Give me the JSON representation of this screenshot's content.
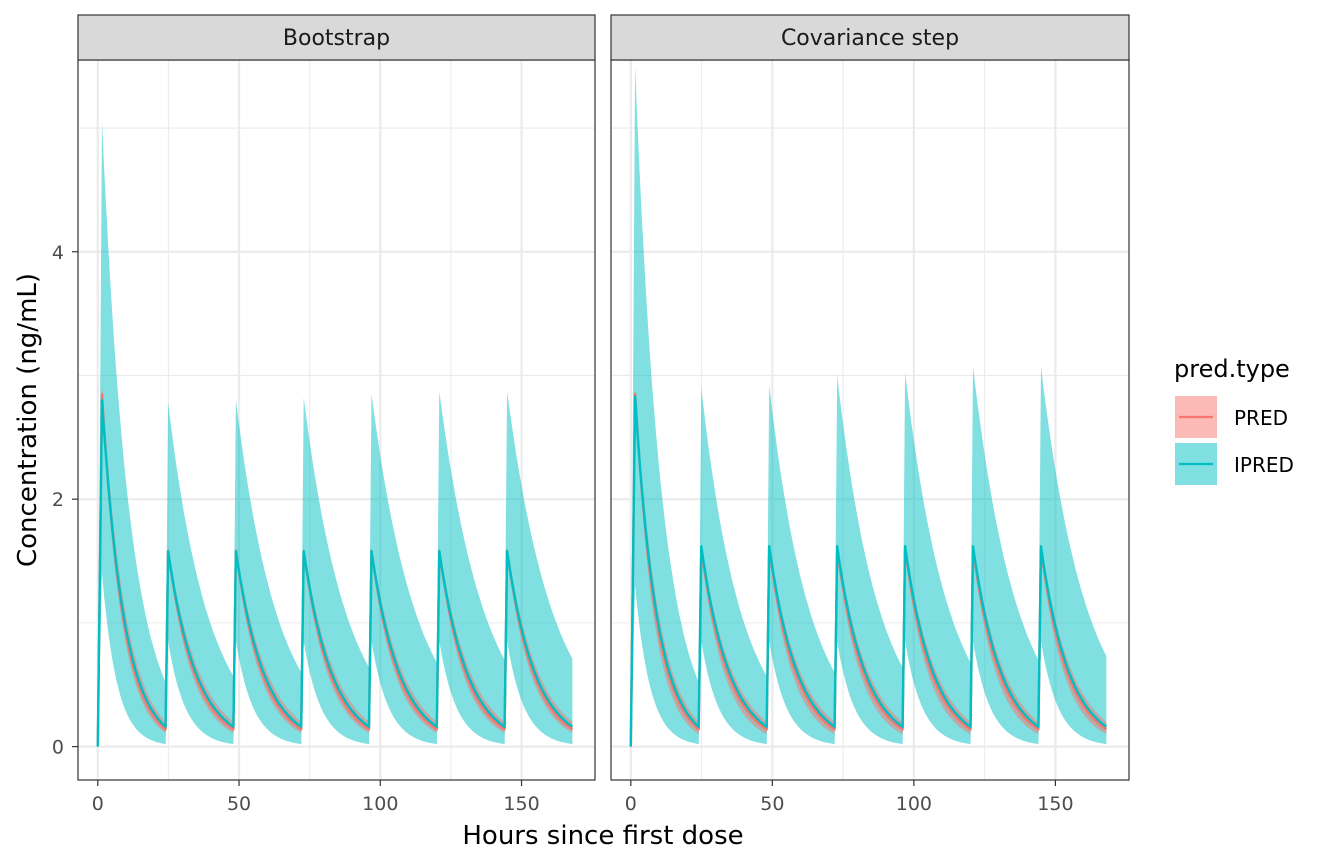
{
  "chart_data": {
    "type": "line",
    "xlabel": "Hours since first dose",
    "ylabel": "Concentration (ng/mL)",
    "xlim": [
      -7,
      176
    ],
    "ylim": [
      -0.27,
      5.55
    ],
    "x_ticks": [
      0,
      50,
      100,
      150
    ],
    "x_tick_labels": [
      "0",
      "50",
      "100",
      "150"
    ],
    "x_minor_ticks": [
      25,
      75,
      125
    ],
    "y_ticks": [
      0,
      2,
      4
    ],
    "y_tick_labels": [
      "0",
      "2",
      "4"
    ],
    "y_minor_ticks": [
      1,
      3,
      5
    ],
    "grid": true,
    "dose_times": [
      0,
      24,
      48,
      72,
      96,
      120,
      144
    ],
    "x_end": 168,
    "legend": {
      "title": "pred.type",
      "position": "right",
      "entries": [
        {
          "label": "PRED",
          "color": "#F8766D"
        },
        {
          "label": "IPRED",
          "color": "#00BFC4"
        }
      ]
    },
    "panels": [
      {
        "strip": "Bootstrap",
        "series": [
          {
            "name": "PRED",
            "color": "#F8766D",
            "median": {
              "first_peak": 2.85,
              "peak": 1.58,
              "trough": 0.14
            },
            "band": {
              "first_peak_hi": 2.92,
              "first_peak_lo": 2.78,
              "peak_hi": 1.62,
              "peak_lo": 1.54,
              "trough_hi": 0.2,
              "trough_lo": 0.11
            }
          },
          {
            "name": "IPRED",
            "color": "#00BFC4",
            "median": {
              "first_peak": 2.8,
              "peak": 1.58,
              "trough": 0.16
            },
            "band": {
              "first_peak_hi": 5.05,
              "first_peak_lo": 1.4,
              "peak_hi": [
                2.75,
                2.78,
                2.8,
                2.82,
                2.85,
                2.87
              ],
              "peak_lo": 0.85,
              "trough_hi": [
                0.52,
                0.57,
                0.6,
                0.64,
                0.68,
                0.7,
                0.71
              ],
              "trough_lo": 0.02
            }
          }
        ]
      },
      {
        "strip": "Covariance step",
        "series": [
          {
            "name": "PRED",
            "color": "#F8766D",
            "median": {
              "first_peak": 2.85,
              "peak": 1.6,
              "trough": 0.14
            },
            "band": {
              "first_peak_hi": 2.9,
              "first_peak_lo": 2.78,
              "peak_hi": 1.64,
              "peak_lo": 1.55,
              "trough_hi": 0.2,
              "trough_lo": 0.1
            }
          },
          {
            "name": "IPRED",
            "color": "#00BFC4",
            "median": {
              "first_peak": 2.83,
              "peak": 1.62,
              "trough": 0.16
            },
            "band": {
              "first_peak_hi": 5.5,
              "first_peak_lo": 1.3,
              "peak_hi": [
                2.9,
                2.9,
                2.92,
                3.0,
                3.02,
                3.07
              ],
              "peak_lo": 0.85,
              "trough_hi": [
                0.52,
                0.57,
                0.6,
                0.64,
                0.68,
                0.7,
                0.73
              ],
              "trough_lo": 0.02
            }
          }
        ]
      }
    ]
  }
}
